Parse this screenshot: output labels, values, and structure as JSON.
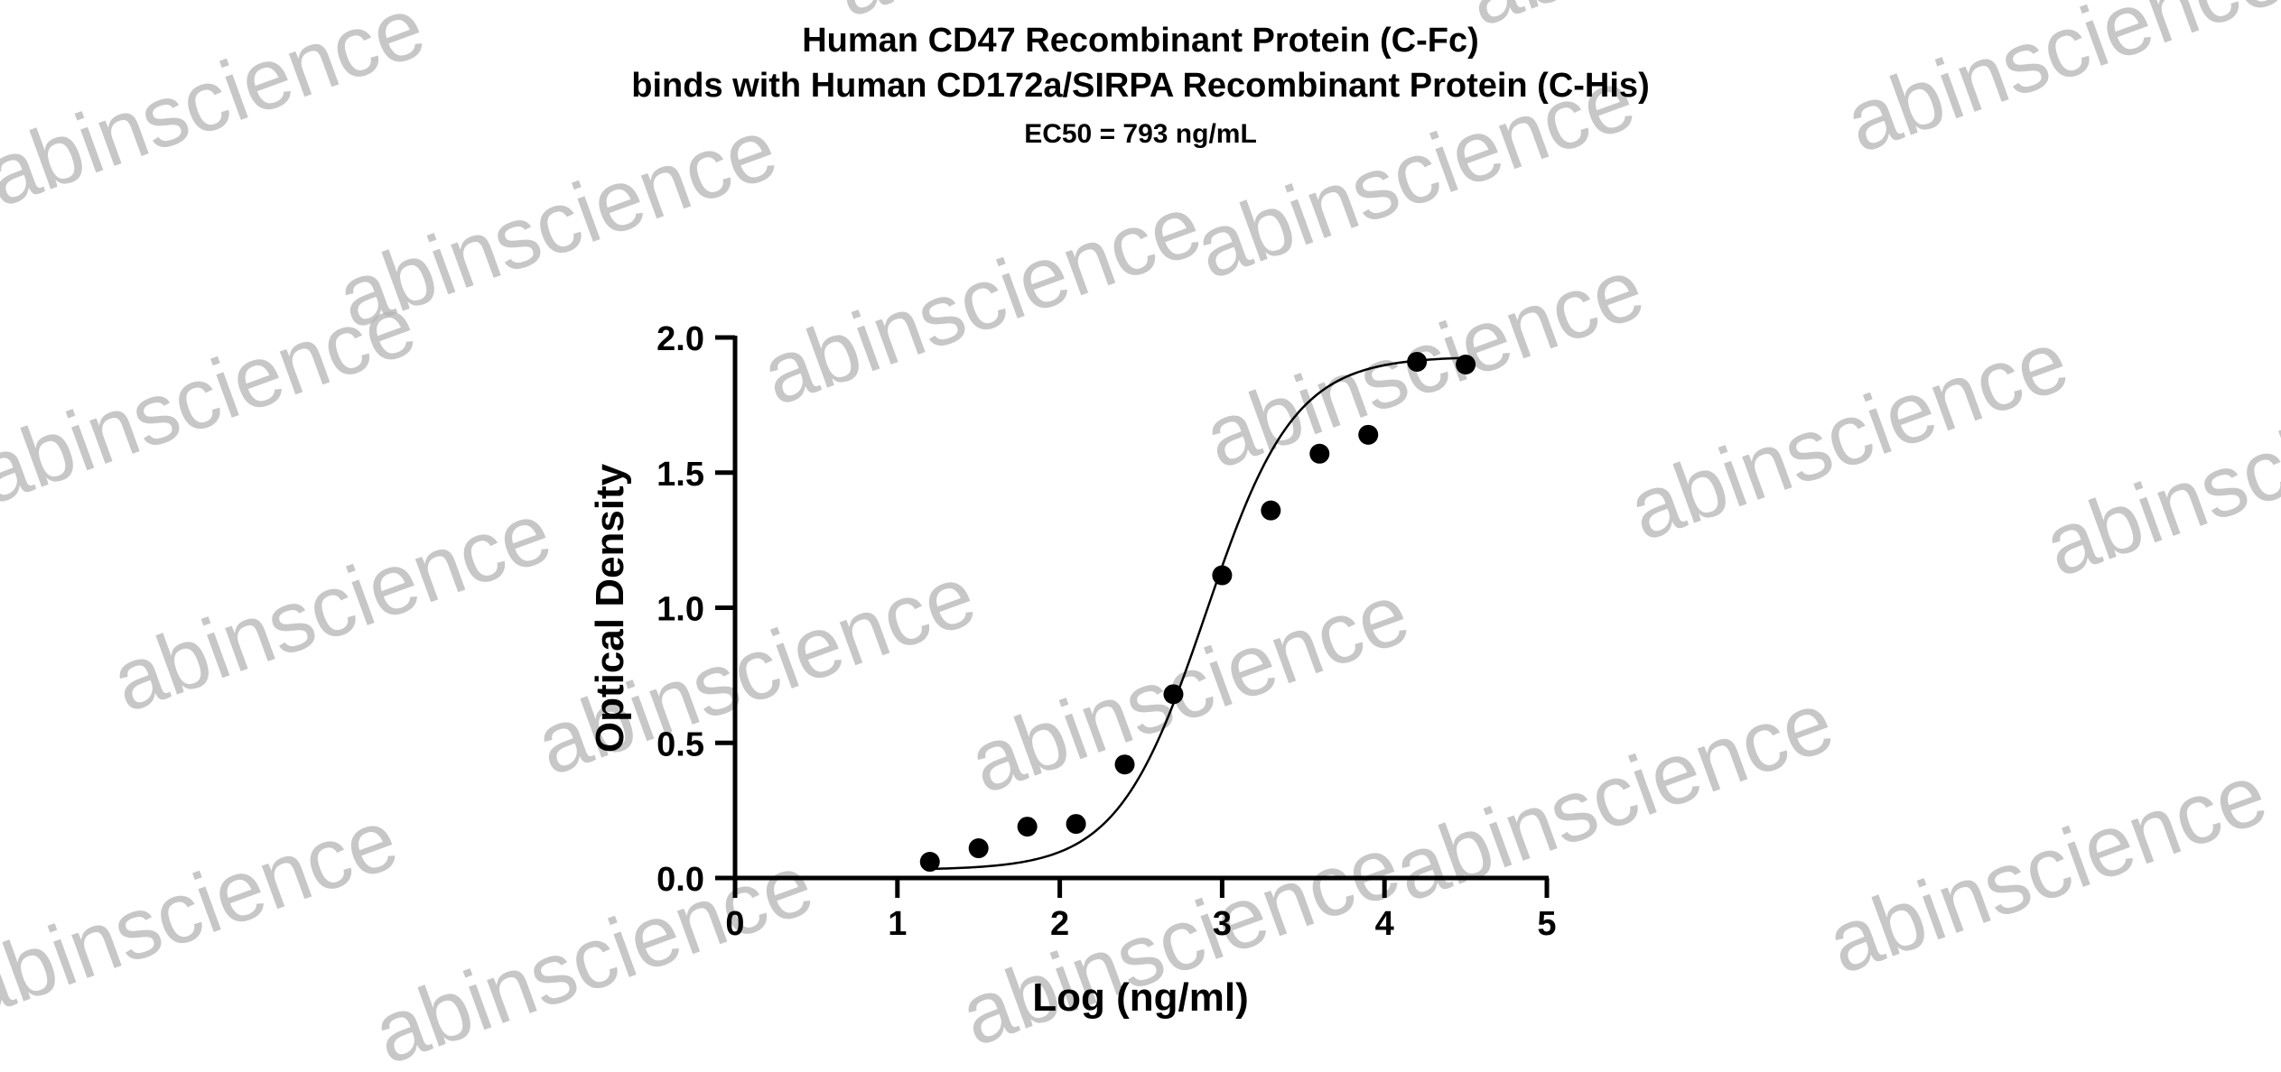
{
  "watermark_text": "abinscience",
  "chart_data": {
    "type": "scatter",
    "title_lines": [
      "Human CD47 Recombinant Protein (C-Fc)",
      "binds with Human CD172a/SIRPA Recombinant Protein (C-His)",
      "EC50 = 793 ng/mL"
    ],
    "xlabel": "Log (ng/ml)",
    "ylabel": "Optical Density",
    "xlim": [
      0,
      5
    ],
    "ylim": [
      0,
      2.0
    ],
    "x_ticks": [
      0,
      1,
      2,
      3,
      4,
      5
    ],
    "x_tick_labels": [
      "0",
      "1",
      "2",
      "3",
      "4",
      "5"
    ],
    "y_ticks": [
      0,
      0.5,
      1.0,
      1.5,
      2.0
    ],
    "y_tick_labels": [
      "0.0",
      "0.5",
      "1.0",
      "1.5",
      "2.0"
    ],
    "grid": false,
    "legend": "none",
    "series": [
      {
        "x": [
          1.2,
          1.5,
          1.8,
          2.1,
          2.4,
          2.7,
          3.0,
          3.3,
          3.6,
          3.9,
          4.2,
          4.5
        ],
        "y": [
          0.06,
          0.11,
          0.19,
          0.2,
          0.42,
          0.68,
          1.12,
          1.36,
          1.57,
          1.64,
          1.91,
          1.9
        ]
      }
    ],
    "fit": {
      "model": "4PL",
      "bottom": 0.03,
      "top": 1.93,
      "logEC50": 2.9,
      "hill": 1.6
    }
  }
}
